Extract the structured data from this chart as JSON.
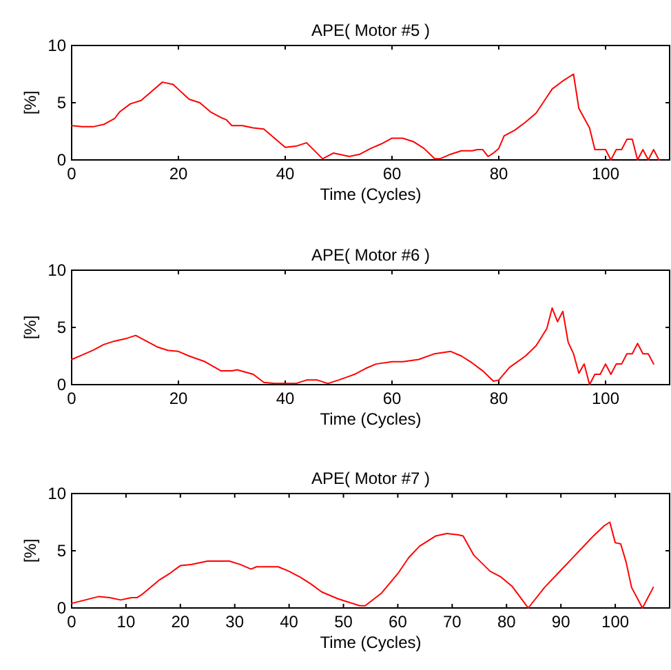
{
  "chart_data": [
    {
      "type": "line",
      "title": "APE( Motor #5 )",
      "xlabel": "Time (Cycles)",
      "ylabel": "[%]",
      "xlim": [
        0,
        112
      ],
      "xticks": [
        0,
        20,
        40,
        60,
        80,
        100
      ],
      "ylim": [
        0,
        10
      ],
      "yticks": [
        0,
        5,
        10
      ],
      "grid": false,
      "marker": "none",
      "line_style": "solid",
      "series": [
        {
          "color": "#ff0000",
          "x": [
            0,
            2,
            4,
            6,
            8,
            9,
            11,
            13,
            15,
            17,
            19,
            22,
            24,
            26,
            28,
            29,
            30,
            32,
            34,
            36,
            38,
            40,
            42,
            44,
            47,
            49,
            52,
            54,
            56,
            58,
            60,
            62,
            64,
            66,
            68,
            69,
            71,
            73,
            75,
            76,
            77,
            78,
            79,
            80,
            81,
            83,
            85,
            87,
            89,
            90,
            92,
            94,
            95,
            97,
            98,
            100,
            101,
            102,
            103,
            104,
            105,
            106,
            107,
            108,
            109,
            110
          ],
          "values": [
            3.0,
            2.9,
            2.9,
            3.1,
            3.6,
            4.2,
            4.9,
            5.2,
            6.0,
            6.8,
            6.6,
            5.3,
            5.0,
            4.2,
            3.7,
            3.5,
            3.0,
            3.0,
            2.8,
            2.7,
            1.9,
            1.1,
            1.2,
            1.5,
            0.1,
            0.6,
            0.3,
            0.5,
            1.0,
            1.4,
            1.9,
            1.9,
            1.6,
            1.0,
            0.1,
            0.1,
            0.5,
            0.8,
            0.8,
            0.9,
            0.9,
            0.3,
            0.6,
            1.0,
            2.1,
            2.6,
            3.3,
            4.1,
            5.5,
            6.2,
            6.9,
            7.5,
            4.5,
            2.8,
            0.9,
            0.9,
            0,
            0.9,
            0.9,
            1.8,
            1.8,
            0,
            0.9,
            0,
            0.9,
            0
          ]
        }
      ]
    },
    {
      "type": "line",
      "title": "APE( Motor #6 )",
      "xlabel": "Time (Cycles)",
      "ylabel": "[%]",
      "xlim": [
        0,
        112
      ],
      "xticks": [
        0,
        20,
        40,
        60,
        80,
        100
      ],
      "ylim": [
        0,
        10
      ],
      "yticks": [
        0,
        5,
        10
      ],
      "grid": false,
      "marker": "none",
      "line_style": "solid",
      "series": [
        {
          "color": "#ff0000",
          "x": [
            0,
            2,
            4,
            6,
            8,
            10,
            12,
            14,
            16,
            18,
            20,
            22,
            25,
            28,
            30,
            31,
            34,
            36,
            38,
            42,
            44,
            46,
            48,
            50,
            53,
            55,
            57,
            60,
            62,
            65,
            68,
            71,
            73,
            75,
            77,
            79,
            80,
            82,
            85,
            87,
            89,
            90,
            91,
            92,
            93,
            94,
            95,
            96,
            97,
            98,
            99,
            100,
            101,
            102,
            103,
            104,
            105,
            106,
            107,
            108,
            109
          ],
          "values": [
            2.2,
            2.6,
            3.0,
            3.5,
            3.8,
            4.0,
            4.3,
            3.8,
            3.3,
            3.0,
            2.9,
            2.5,
            2.0,
            1.2,
            1.2,
            1.3,
            0.9,
            0.2,
            0.1,
            0.1,
            0.4,
            0.4,
            0.1,
            0.4,
            0.9,
            1.4,
            1.8,
            2.0,
            2.0,
            2.2,
            2.7,
            2.9,
            2.5,
            1.9,
            1.2,
            0.3,
            0.4,
            1.5,
            2.5,
            3.4,
            4.9,
            6.7,
            5.5,
            6.4,
            3.7,
            2.7,
            1.0,
            1.8,
            0,
            0.9,
            0.9,
            1.8,
            0.9,
            1.8,
            1.8,
            2.7,
            2.7,
            3.6,
            2.7,
            2.7,
            1.8
          ]
        }
      ]
    },
    {
      "type": "line",
      "title": "APE( Motor #7 )",
      "xlabel": "Time (Cycles)",
      "ylabel": "[%]",
      "xlim": [
        0,
        110
      ],
      "xticks": [
        0,
        10,
        20,
        30,
        40,
        50,
        60,
        70,
        80,
        90,
        100
      ],
      "ylim": [
        0,
        10
      ],
      "yticks": [
        0,
        5,
        10
      ],
      "grid": false,
      "marker": "none",
      "line_style": "solid",
      "series": [
        {
          "color": "#ff0000",
          "x": [
            0,
            5,
            7,
            9,
            11,
            12,
            13,
            14,
            16,
            18,
            20,
            22,
            25,
            29,
            31,
            33,
            34,
            38,
            40,
            42,
            44,
            46,
            49,
            51,
            53,
            54,
            57,
            60,
            62,
            64,
            67,
            69,
            71,
            72,
            74,
            77,
            79,
            81,
            84,
            87,
            90,
            92,
            94,
            96,
            98,
            99,
            100,
            101,
            102,
            103,
            105,
            107
          ],
          "values": [
            0.4,
            1.0,
            0.9,
            0.7,
            0.9,
            0.9,
            1.2,
            1.6,
            2.4,
            3.0,
            3.7,
            3.8,
            4.1,
            4.1,
            3.8,
            3.4,
            3.6,
            3.6,
            3.2,
            2.7,
            2.1,
            1.4,
            0.8,
            0.5,
            0.2,
            0.2,
            1.3,
            3.0,
            4.4,
            5.4,
            6.3,
            6.5,
            6.4,
            6.3,
            4.6,
            3.2,
            2.7,
            1.9,
            0,
            1.8,
            3.3,
            4.3,
            5.3,
            6.3,
            7.2,
            7.5,
            5.7,
            5.6,
            4.0,
            1.8,
            0,
            1.8
          ]
        }
      ]
    }
  ]
}
